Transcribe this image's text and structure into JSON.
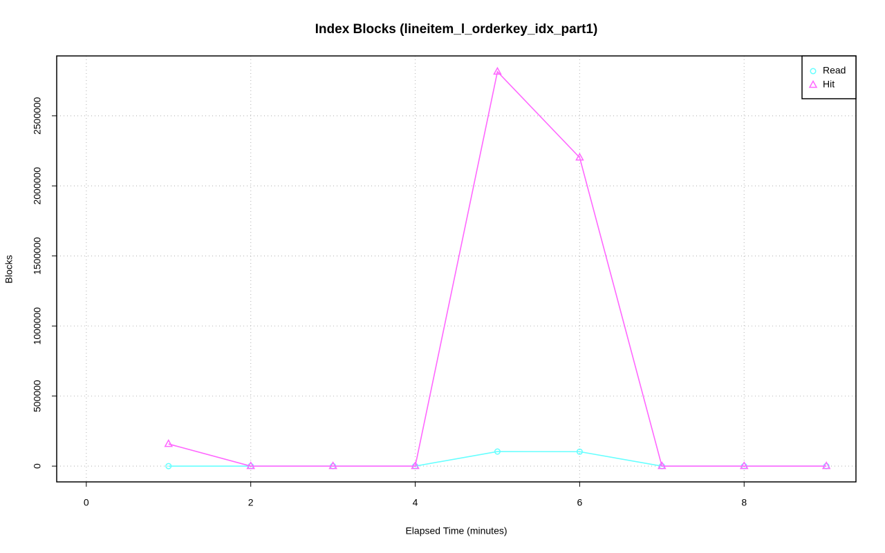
{
  "chart_data": {
    "type": "line",
    "title": "Index Blocks (lineitem_l_orderkey_idx_part1)",
    "x_label": "Elapsed Time (minutes)",
    "y_label": "Blocks",
    "x": [
      1,
      2,
      3,
      4,
      5,
      6,
      7,
      8,
      9
    ],
    "series": [
      {
        "name": "Read",
        "color": "#66ffff",
        "marker": "circle",
        "values": [
          0,
          0,
          0,
          0,
          104000,
          103000,
          0,
          0,
          0
        ]
      },
      {
        "name": "Hit",
        "color": "#ff66ff",
        "marker": "triangle",
        "values": [
          158000,
          0,
          0,
          0,
          2815000,
          2202000,
          0,
          0,
          0
        ]
      }
    ],
    "xlim": [
      -0.36,
      9.36
    ],
    "xticks": [
      0,
      2,
      4,
      6,
      8
    ],
    "ylim": [
      -112600,
      2927600
    ],
    "yticks": [
      0,
      500000,
      1000000,
      1500000,
      2000000,
      2500000
    ],
    "grid": true,
    "legend": "top-right"
  }
}
